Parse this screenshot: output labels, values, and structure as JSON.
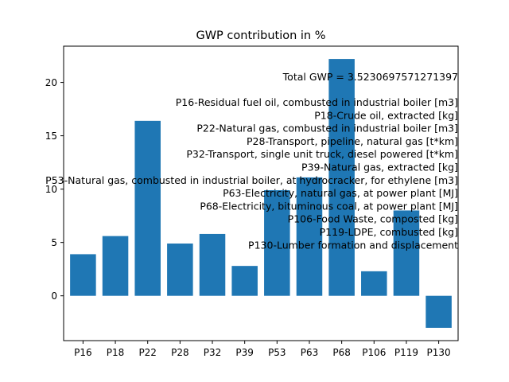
{
  "chart_data": {
    "type": "bar",
    "title": "GWP contribution in %",
    "xlabel": "",
    "ylabel": "",
    "categories": [
      "P16",
      "P18",
      "P22",
      "P28",
      "P32",
      "P39",
      "P53",
      "P63",
      "P68",
      "P106",
      "P119",
      "P130"
    ],
    "values": [
      3.9,
      5.6,
      16.4,
      4.9,
      5.8,
      2.8,
      9.9,
      11.1,
      22.2,
      2.3,
      8.0,
      -3.0
    ],
    "ylim": [
      -4.2,
      23.4
    ],
    "yticks": [
      0,
      5,
      10,
      15,
      20
    ],
    "bar_color": "#1f77b4",
    "grid": false,
    "annotation": {
      "total_label": "Total GWP = 3.5230697571271397",
      "lines": [
        "P16-Residual fuel oil, combusted in industrial boiler [m3]",
        "P18-Crude oil, extracted [kg]",
        "P22-Natural gas, combusted in industrial boiler [m3]",
        "P28-Transport, pipeline, natural gas [t*km]",
        "P32-Transport, single unit truck, diesel powered [t*km]",
        "P39-Natural gas, extracted [kg]",
        "P53-Natural gas, combusted in industrial boiler, at hydrocracker, for ethylene [m3]",
        "P63-Electricity, natural gas, at power plant [MJ]",
        "P68-Electricity, bituminous coal, at power plant [MJ]",
        "P106-Food Waste, composted [kg]",
        "P119-LDPE, combusted [kg]",
        "P130-Lumber formation and displacement"
      ]
    }
  }
}
